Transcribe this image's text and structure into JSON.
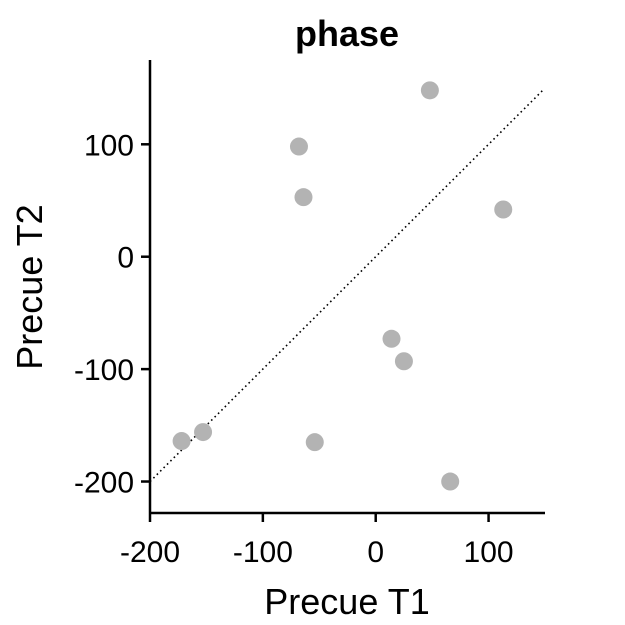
{
  "chart_data": {
    "type": "scatter",
    "title": "phase",
    "xlabel": "Precue T1",
    "ylabel": "Precue T2",
    "xlim": [
      -200,
      150
    ],
    "ylim": [
      -228,
      175
    ],
    "xticks": [
      -200,
      -100,
      0,
      100
    ],
    "yticks": [
      -200,
      -100,
      0,
      100
    ],
    "xtick_labels": [
      "-200",
      "-100",
      "0",
      "100"
    ],
    "ytick_labels": [
      "-200",
      "-100",
      "0",
      "100"
    ],
    "grid": false,
    "reference_line": {
      "style": "dotted",
      "from": [
        -200,
        -200
      ],
      "to": [
        148,
        148
      ]
    },
    "marker_color": "#b3b3b3",
    "points": [
      {
        "x": 48,
        "y": 148
      },
      {
        "x": -68,
        "y": 98
      },
      {
        "x": -64,
        "y": 53
      },
      {
        "x": 113,
        "y": 42
      },
      {
        "x": 14,
        "y": -73
      },
      {
        "x": 25,
        "y": -93
      },
      {
        "x": -153,
        "y": -156
      },
      {
        "x": -172,
        "y": -164
      },
      {
        "x": -54,
        "y": -165
      },
      {
        "x": 66,
        "y": -200
      }
    ]
  }
}
